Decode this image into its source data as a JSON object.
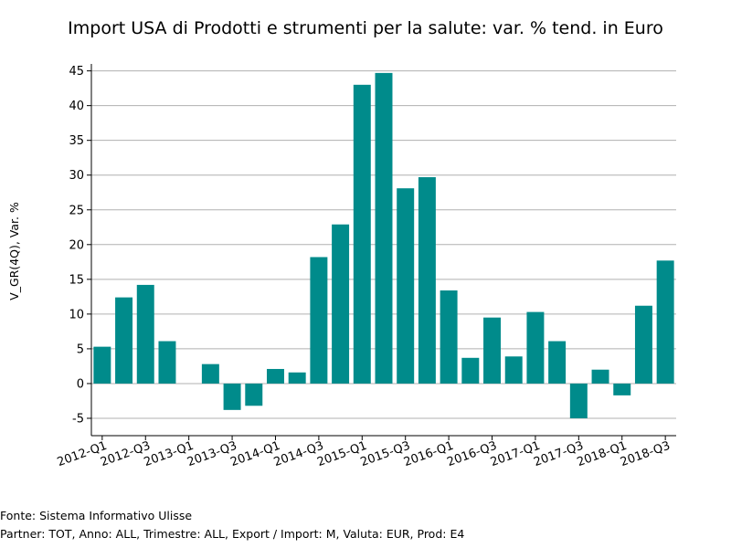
{
  "chart_data": {
    "type": "bar",
    "title": "Import USA di Prodotti e strumenti per la salute: var. % tend. in Euro",
    "xlabel": "",
    "ylabel": "V_GR(4Q), Var. %",
    "ylim": [
      -7.5,
      46
    ],
    "yticks": [
      -5,
      0,
      5,
      10,
      15,
      20,
      25,
      30,
      35,
      40,
      45
    ],
    "grid": true,
    "bar_color": "#008b8b",
    "categories": [
      "2012-Q1",
      "2012-Q2",
      "2012-Q3",
      "2012-Q4",
      "2013-Q1",
      "2013-Q2",
      "2013-Q3",
      "2013-Q4",
      "2014-Q1",
      "2014-Q2",
      "2014-Q3",
      "2014-Q4",
      "2015-Q1",
      "2015-Q2",
      "2015-Q3",
      "2015-Q4",
      "2016-Q1",
      "2016-Q2",
      "2016-Q3",
      "2016-Q4",
      "2017-Q1",
      "2017-Q2",
      "2017-Q3",
      "2017-Q4",
      "2018-Q1",
      "2018-Q2",
      "2018-Q3"
    ],
    "values": [
      5.3,
      12.4,
      14.2,
      6.1,
      0,
      2.8,
      -3.8,
      -3.2,
      2.1,
      1.6,
      18.2,
      22.9,
      43.0,
      44.7,
      28.1,
      29.7,
      13.4,
      3.7,
      9.5,
      3.9,
      10.3,
      6.1,
      -5.0,
      2.0,
      -1.7,
      11.2,
      17.7
    ],
    "xtick_labels": [
      "2012-Q1",
      "2012-Q3",
      "2013-Q1",
      "2013-Q3",
      "2014-Q1",
      "2014-Q3",
      "2015-Q1",
      "2015-Q3",
      "2016-Q1",
      "2016-Q3",
      "2017-Q1",
      "2017-Q3",
      "2018-Q1",
      "2018-Q3"
    ]
  },
  "footer": {
    "source": "Fonte: Sistema Informativo Ulisse",
    "meta": "Partner: TOT, Anno: ALL, Trimestre: ALL, Export / Import: M, Valuta: EUR, Prod: E4"
  }
}
